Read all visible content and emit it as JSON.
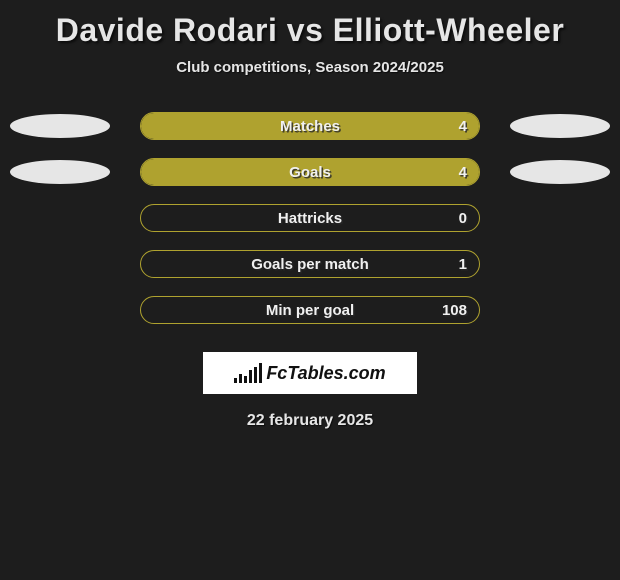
{
  "title": "Davide Rodari vs Elliott-Wheeler",
  "subtitle": "Club competitions, Season 2024/2025",
  "date": "22 february 2025",
  "logo_text": "FcTables.com",
  "background_color": "#1d1d1d",
  "bar_color": "#afa22f",
  "ellipse_color": "#e6e6e6",
  "text_color": "#e6e6e6",
  "logo_box_bg": "#ffffff",
  "title_fontsize": 32,
  "subtitle_fontsize": 15,
  "bar_label_fontsize": 15,
  "stats": [
    {
      "label": "Matches",
      "value": "4",
      "fill_pct": 100,
      "show_left_ellipse": true,
      "show_right_ellipse": true
    },
    {
      "label": "Goals",
      "value": "4",
      "fill_pct": 100,
      "show_left_ellipse": true,
      "show_right_ellipse": true
    },
    {
      "label": "Hattricks",
      "value": "0",
      "fill_pct": 0,
      "show_left_ellipse": false,
      "show_right_ellipse": false
    },
    {
      "label": "Goals per match",
      "value": "1",
      "fill_pct": 0,
      "show_left_ellipse": false,
      "show_right_ellipse": false
    },
    {
      "label": "Min per goal",
      "value": "108",
      "fill_pct": 0,
      "show_left_ellipse": false,
      "show_right_ellipse": false
    }
  ]
}
